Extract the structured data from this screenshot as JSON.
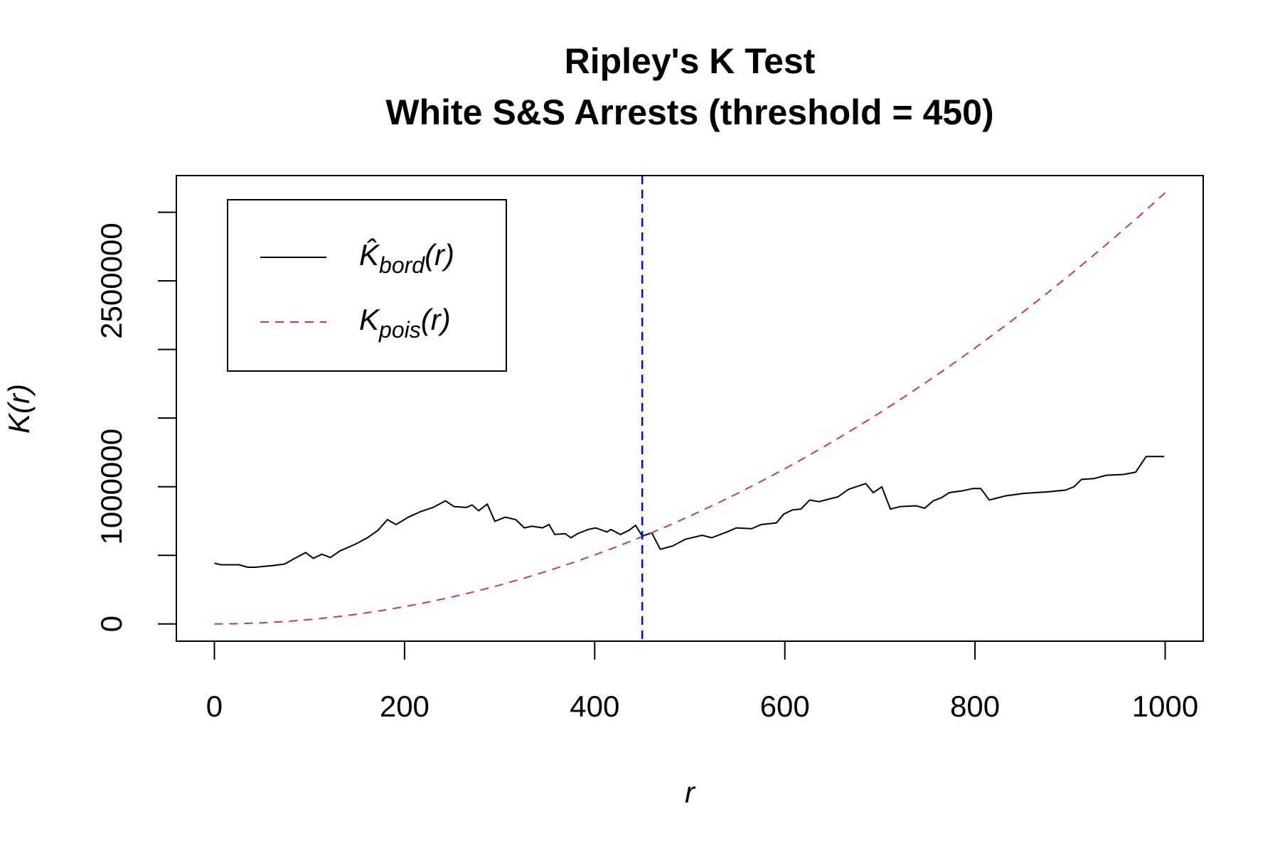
{
  "chart_data": {
    "type": "line",
    "title": "Ripley's K Test",
    "subtitle": "White S&S Arrests (threshold = 450)",
    "x_label": "r",
    "y_label": "K(r)",
    "xlim": [
      -40,
      1040
    ],
    "ylim": [
      -125664,
      3267256
    ],
    "xticks": [
      0,
      200,
      400,
      600,
      800,
      1000
    ],
    "yticks": [
      0,
      1000000,
      2500000
    ],
    "yminor_ticks": [
      500000,
      1500000,
      2000000,
      3000000
    ],
    "vline": 450,
    "vline_color": "#0000ee",
    "legend": "top-left",
    "series": [
      {
        "name": "K̂bord(r)",
        "color": "#000000",
        "dash": false,
        "x": [
          0,
          7,
          26,
          35,
          43,
          61,
          74,
          83,
          96,
          104,
          113,
          122,
          132,
          148,
          161,
          172,
          182,
          191,
          204,
          217,
          230,
          243,
          252,
          265,
          271,
          278,
          287,
          295,
          306,
          317,
          326,
          334,
          345,
          352,
          358,
          369,
          375,
          382,
          393,
          401,
          413,
          417,
          427,
          436,
          443,
          450,
          460,
          469,
          482,
          495,
          513,
          523,
          539,
          549,
          565,
          575,
          591,
          599,
          608,
          617,
          626,
          636,
          656,
          667,
          685,
          693,
          702,
          711,
          721,
          738,
          747,
          756,
          765,
          773,
          786,
          798,
          806,
          815,
          832,
          851,
          877,
          895,
          904,
          912,
          925,
          938,
          956,
          969,
          980,
          999
        ],
        "values": [
          443000,
          431000,
          431000,
          413000,
          413000,
          425000,
          437000,
          472000,
          520000,
          478000,
          508000,
          484000,
          532000,
          580000,
          628000,
          682000,
          760000,
          724000,
          778000,
          819000,
          849000,
          897000,
          855000,
          849000,
          867000,
          825000,
          873000,
          748000,
          778000,
          760000,
          700000,
          712000,
          700000,
          724000,
          652000,
          658000,
          628000,
          658000,
          688000,
          700000,
          670000,
          688000,
          652000,
          682000,
          718000,
          640000,
          664000,
          544000,
          568000,
          616000,
          646000,
          628000,
          670000,
          700000,
          694000,
          724000,
          736000,
          801000,
          831000,
          837000,
          903000,
          891000,
          927000,
          981000,
          1023000,
          957000,
          999000,
          837000,
          855000,
          861000,
          843000,
          897000,
          921000,
          957000,
          969000,
          987000,
          987000,
          903000,
          933000,
          951000,
          963000,
          975000,
          999000,
          1053000,
          1059000,
          1083000,
          1089000,
          1106000,
          1220000,
          1220000
        ]
      },
      {
        "name": "Kpois(r)",
        "color": "#d1365a",
        "dash": true,
        "x": [
          0,
          25,
          50,
          75,
          100,
          125,
          150,
          175,
          200,
          225,
          250,
          275,
          300,
          325,
          350,
          375,
          400,
          425,
          450,
          475,
          500,
          525,
          550,
          575,
          600,
          625,
          650,
          675,
          700,
          725,
          750,
          775,
          800,
          825,
          850,
          875,
          900,
          925,
          950,
          975,
          1000
        ],
        "values": [
          0,
          1963,
          7854,
          17671,
          31416,
          49087,
          70686,
          96211,
          125664,
          159043,
          196350,
          237583,
          282743,
          331831,
          384845,
          441786,
          502655,
          567450,
          636173,
          708822,
          785398,
          865901,
          950332,
          1038689,
          1130973,
          1227185,
          1327323,
          1431388,
          1539380,
          1651300,
          1767146,
          1886919,
          2010619,
          2138246,
          2269801,
          2405282,
          2544690,
          2688025,
          2835287,
          2986476,
          3141593
        ]
      }
    ]
  }
}
